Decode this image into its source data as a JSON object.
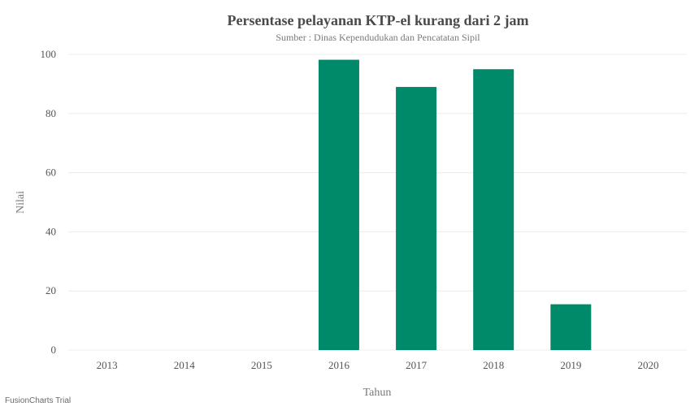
{
  "chart_data": {
    "type": "bar",
    "title": "Persentase pelayanan KTP-el kurang dari 2 jam",
    "subtitle": "Sumber : Dinas Kependudukan dan Pencatatan Sipil",
    "xlabel": "Tahun",
    "ylabel": "Nilai",
    "categories": [
      "2013",
      "2014",
      "2015",
      "2016",
      "2017",
      "2018",
      "2019",
      "2020"
    ],
    "values": [
      0,
      0,
      0,
      98.2,
      89,
      95,
      15.5,
      0
    ],
    "ylim": [
      0,
      100
    ],
    "yticks": [
      0,
      20,
      40,
      60,
      80,
      100
    ],
    "grid": true,
    "bar_color": "#008a6a"
  },
  "watermark": "FusionCharts Trial"
}
